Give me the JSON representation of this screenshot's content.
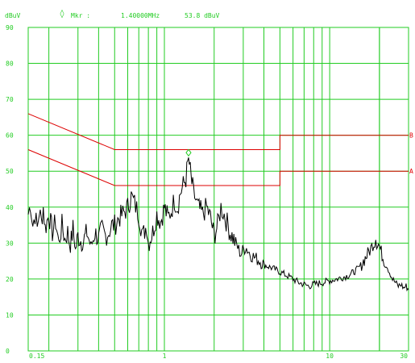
{
  "header": {
    "unit_label": "dBuV",
    "marker_symbol": "◊",
    "marker_label": "Mkr :",
    "marker_freq": "1.40000MHz",
    "marker_level": "53.8 dBuV"
  },
  "colors": {
    "grid": "#22cc22",
    "text": "#22cc22",
    "trace": "#000000",
    "limit": "#dd0000",
    "marker": "#22cc22",
    "background": "#ffffff"
  },
  "chart_data": {
    "type": "line",
    "title": "",
    "xlabel": "",
    "ylabel": "dBuV",
    "x_scale": "log",
    "xlim": [
      0.15,
      30
    ],
    "ylim": [
      0,
      90
    ],
    "grid": true,
    "x_tick_labels": [
      "0.15",
      "1",
      "10",
      "30"
    ],
    "x_tick_values": [
      0.15,
      1,
      10,
      30
    ],
    "y_tick_labels": [
      "0",
      "10",
      "20",
      "30",
      "40",
      "50",
      "60",
      "70",
      "80",
      "90"
    ],
    "y_tick_values": [
      0,
      10,
      20,
      30,
      40,
      50,
      60,
      70,
      80,
      90
    ],
    "limit_lines": [
      {
        "name": "B",
        "x": [
          0.15,
          0.5,
          0.5,
          5,
          5,
          30
        ],
        "y": [
          66,
          56,
          56,
          56,
          60,
          60
        ]
      },
      {
        "name": "A",
        "x": [
          0.15,
          0.5,
          0.5,
          5,
          5,
          30
        ],
        "y": [
          56,
          46,
          46,
          46,
          50,
          50
        ]
      }
    ],
    "marker": {
      "x": 1.4,
      "y": 53.8
    },
    "series": [
      {
        "x": [
          0.15,
          0.155,
          0.16,
          0.165,
          0.17,
          0.175,
          0.18,
          0.185,
          0.19,
          0.2,
          0.21,
          0.22,
          0.23,
          0.24,
          0.25,
          0.26,
          0.27,
          0.28,
          0.29,
          0.3,
          0.32,
          0.34,
          0.36,
          0.38,
          0.4,
          0.42,
          0.44,
          0.46,
          0.48,
          0.5,
          0.53,
          0.56,
          0.6,
          0.63,
          0.66,
          0.7,
          0.74,
          0.78,
          0.8,
          0.85,
          0.9,
          0.95,
          1.0,
          1.05,
          1.1,
          1.15,
          1.2,
          1.25,
          1.3,
          1.35,
          1.4,
          1.45,
          1.5,
          1.55,
          1.6,
          1.7,
          1.8,
          1.9,
          2.0,
          2.1,
          2.2,
          2.3,
          2.5,
          2.7,
          2.9,
          3.1,
          3.3,
          3.5,
          3.8,
          4.0,
          4.5,
          5.0,
          5.5,
          6.0,
          6.5,
          7.0,
          7.5,
          8.0,
          9.0,
          10.0,
          11.0,
          12.0,
          13.0,
          14.0,
          15.0,
          16.0,
          17.0,
          18.0,
          19.0,
          20.0,
          21.0,
          22.0,
          23.0,
          24.0,
          25.0,
          26.0,
          27.0,
          28.0,
          29.0,
          30.0
        ],
        "y": [
          38,
          41,
          35,
          38,
          34,
          39,
          36,
          40,
          34,
          38,
          33,
          36,
          30,
          35,
          31,
          33,
          29,
          34,
          28,
          32,
          30,
          33,
          29,
          33,
          31,
          34,
          32,
          33,
          35,
          35,
          37,
          38,
          40,
          43,
          41,
          38,
          32,
          35,
          30,
          33,
          38,
          36,
          40,
          37,
          39,
          42,
          40,
          44,
          46,
          48,
          53.8,
          48,
          44,
          42,
          40,
          38,
          40,
          37,
          32,
          35,
          40,
          38,
          33,
          30,
          27,
          29,
          27,
          26,
          25,
          24,
          23,
          22,
          21,
          20,
          19,
          18.5,
          18,
          18.5,
          19,
          19.5,
          20,
          20.5,
          21,
          22,
          23,
          25,
          27,
          29,
          32,
          29,
          26,
          24,
          22,
          20,
          19,
          18,
          18.5,
          17.5,
          18,
          17
        ]
      }
    ]
  }
}
